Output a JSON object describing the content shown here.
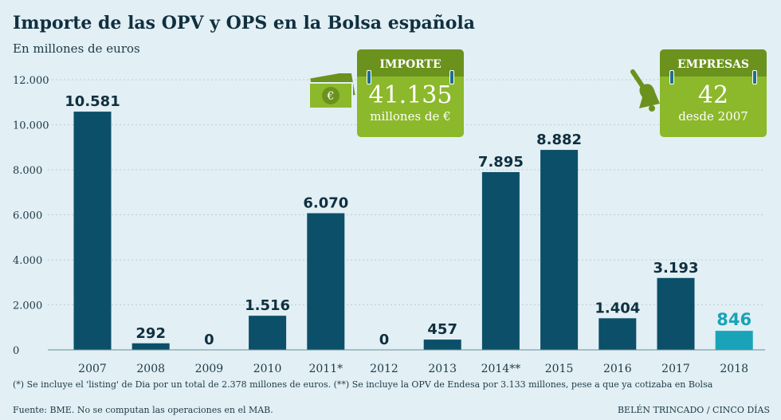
{
  "title": "Importe de las OPV y OPS en la Bolsa española",
  "subtitle": "En millones de euros",
  "cards": [
    {
      "header": "IMPORTE",
      "value": "41.135",
      "caption": "millones de €",
      "icon": "money-icon"
    },
    {
      "header": "EMPRESAS",
      "value": "42",
      "caption": "desde 2007",
      "icon": "bell-icon"
    }
  ],
  "note": "(*) Se incluye el 'listing' de Dia por un total de 2.378 millones de euros. (**) Se incluye la OPV de Endesa por 3.133 millones, pese a que ya cotizaba en Bolsa",
  "source": "Fuente: BME. No se computan las operaciones en el MAB.",
  "credit": "BELÉN TRINCADO / CINCO DÍAS",
  "colors": {
    "bar": "#0c4f69",
    "highlight": "#19a3b8",
    "card": "#8cb82b"
  },
  "chart_data": {
    "type": "bar",
    "title": "Importe de las OPV y OPS en la Bolsa española",
    "ylabel": "En millones de euros",
    "categories": [
      "2007",
      "2008",
      "2009",
      "2010",
      "2011*",
      "2012",
      "2013",
      "2014**",
      "2015",
      "2016",
      "2017",
      "2018"
    ],
    "values": [
      10581,
      292,
      0,
      1516,
      6070,
      0,
      457,
      7895,
      8882,
      1404,
      3193,
      846
    ],
    "value_labels": [
      "10.581",
      "292",
      "0",
      "1.516",
      "6.070",
      "0",
      "457",
      "7.895",
      "8.882",
      "1.404",
      "3.193",
      "846"
    ],
    "yticks": [
      0,
      2000,
      4000,
      6000,
      8000,
      10000,
      12000
    ],
    "ytick_labels": [
      "0",
      "2.000",
      "4.000",
      "6.000",
      "8.000",
      "10.000",
      "12.000"
    ],
    "ylim": [
      0,
      12000
    ],
    "highlight_index": 11
  }
}
